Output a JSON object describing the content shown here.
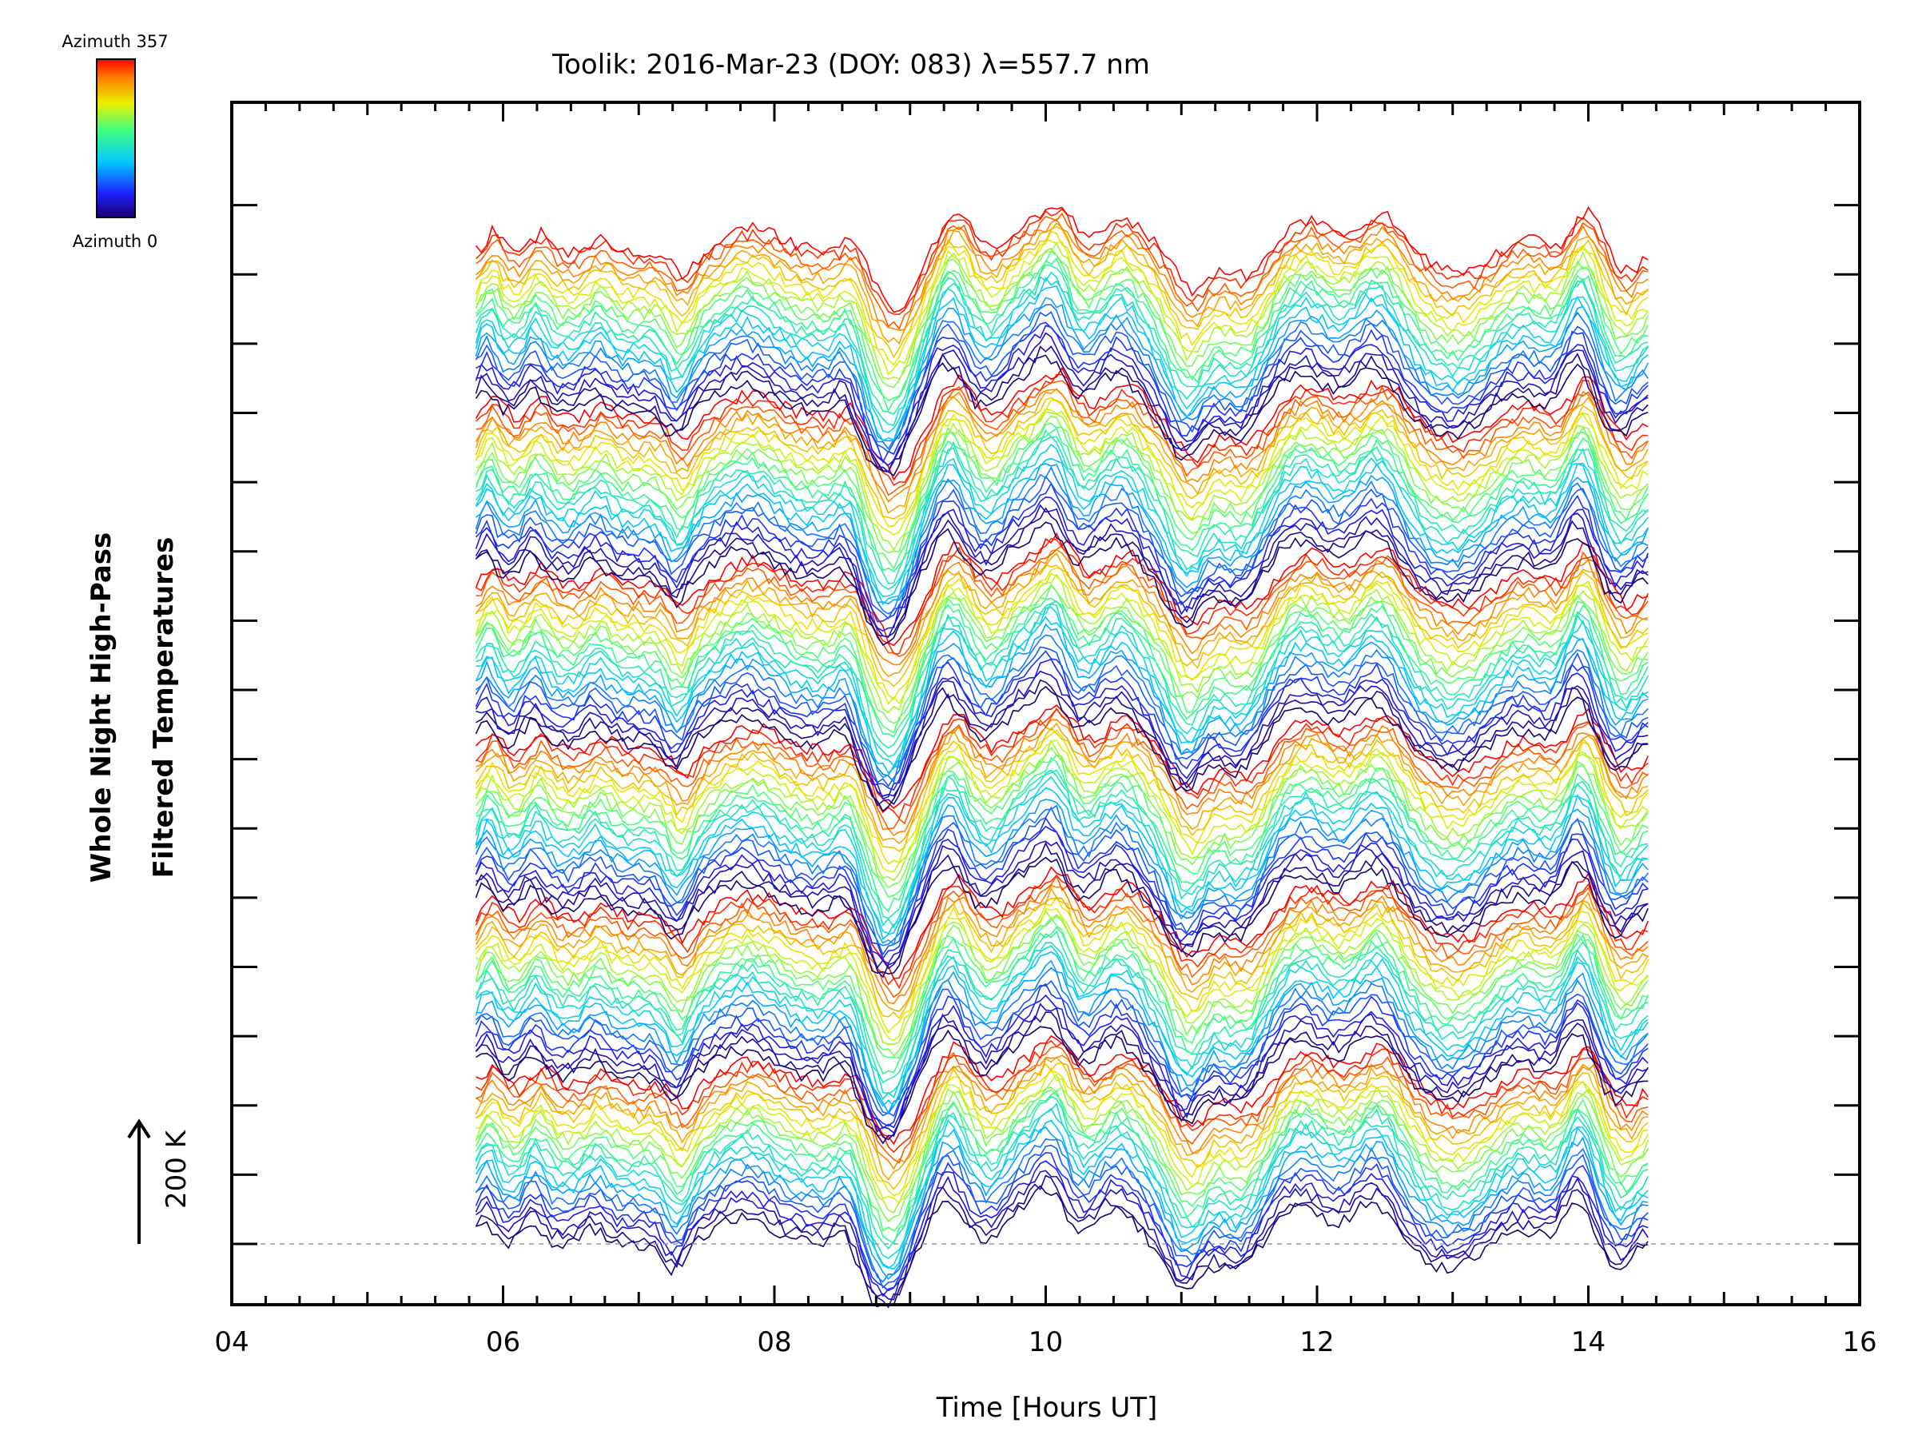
{
  "chart_data": {
    "type": "line",
    "title": "Toolik: 2016-Mar-23 (DOY: 083) λ=557.7 nm",
    "xlabel": "Time [Hours UT]",
    "ylabel_line1": "Whole Night High-Pass",
    "ylabel_line2": "Filtered Temperatures",
    "xlim": [
      4,
      16
    ],
    "x_ticks": [
      "04",
      "06",
      "08",
      "10",
      "12",
      "14",
      "16"
    ],
    "x_minor_step_hours": 0.25,
    "y_major_tick_count": 16,
    "scale_bar_label": "200 K",
    "colorbar": {
      "top_label": "Azimuth  357",
      "bottom_label": "Azimuth  0",
      "min": 0,
      "max": 357
    },
    "series_time_range": [
      5.8,
      14.45
    ],
    "series_count": 144,
    "series_offset_step": 0.09,
    "baseline": 0,
    "description_of_series": "Stacked high-pass filtered temperature traces, one per azimuth, coloured by azimuth (rainbow 0-357)",
    "waveform_peaks": [
      {
        "t": 5.9,
        "a": 0.8,
        "w": 0.06
      },
      {
        "t": 6.25,
        "a": 0.7,
        "w": 0.07
      },
      {
        "t": 6.7,
        "a": 0.5,
        "w": 0.08
      },
      {
        "t": 7.3,
        "a": -0.9,
        "w": 0.08
      },
      {
        "t": 7.8,
        "a": 0.9,
        "w": 0.2
      },
      {
        "t": 8.55,
        "a": 0.6,
        "w": 0.08
      },
      {
        "t": 8.85,
        "a": -2.2,
        "w": 0.15
      },
      {
        "t": 9.3,
        "a": 1.5,
        "w": 0.12
      },
      {
        "t": 9.8,
        "a": 0.8,
        "w": 0.1
      },
      {
        "t": 10.05,
        "a": 1.8,
        "w": 0.12
      },
      {
        "t": 10.55,
        "a": 1.2,
        "w": 0.15
      },
      {
        "t": 11.05,
        "a": -1.5,
        "w": 0.12
      },
      {
        "t": 11.45,
        "a": -1.0,
        "w": 0.15
      },
      {
        "t": 11.9,
        "a": 1.2,
        "w": 0.2
      },
      {
        "t": 12.45,
        "a": 1.4,
        "w": 0.15
      },
      {
        "t": 13.0,
        "a": -0.8,
        "w": 0.2
      },
      {
        "t": 13.5,
        "a": 0.5,
        "w": 0.15
      },
      {
        "t": 13.95,
        "a": 1.5,
        "w": 0.1
      },
      {
        "t": 14.25,
        "a": -0.8,
        "w": 0.1
      }
    ]
  }
}
